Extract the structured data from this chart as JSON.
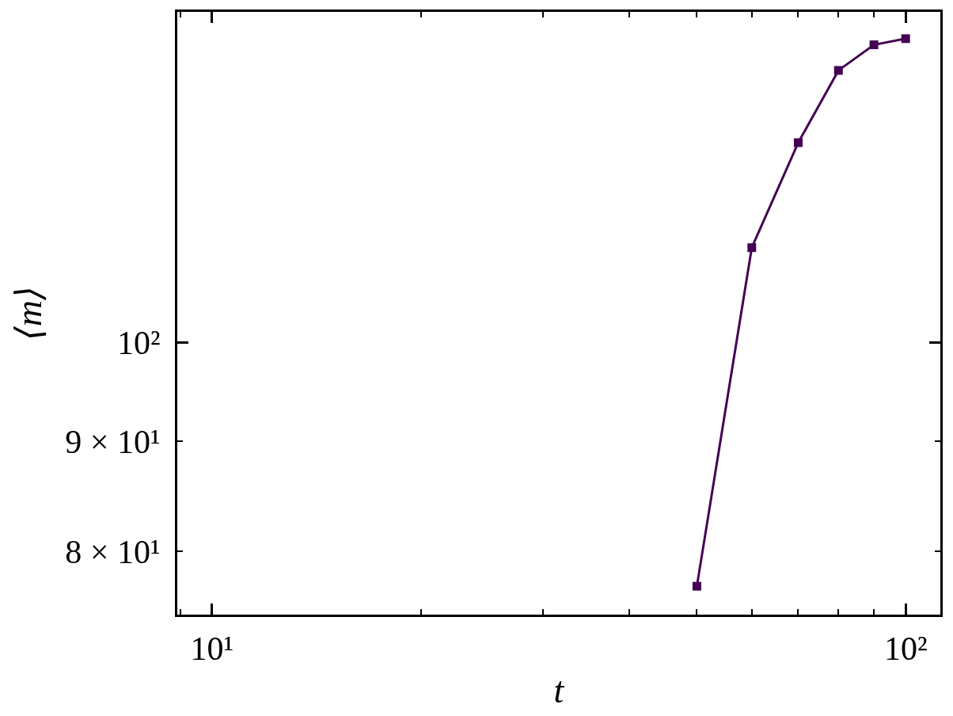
{
  "chart_data": {
    "type": "line",
    "xlabel": "t",
    "ylabel": "⟨m⟩",
    "x": [
      50,
      60,
      70,
      80,
      90,
      100
    ],
    "series": [
      {
        "color": "#440154",
        "values": [
          77.1,
          110.6,
          123.7,
          133.6,
          137.3,
          138.2
        ]
      }
    ],
    "log": "xy",
    "xlim": [
      8.91,
      112.2
    ],
    "ylim": [
      74.8,
      142.2
    ],
    "xticks": [
      {
        "value": 9,
        "label": null
      },
      {
        "value": 10,
        "label": "10¹"
      },
      {
        "value": 20,
        "label": null
      },
      {
        "value": 30,
        "label": null
      },
      {
        "value": 40,
        "label": null
      },
      {
        "value": 50,
        "label": null
      },
      {
        "value": 60,
        "label": null
      },
      {
        "value": 70,
        "label": null
      },
      {
        "value": 80,
        "label": null
      },
      {
        "value": 90,
        "label": null
      },
      {
        "value": 100,
        "label": "10²"
      }
    ],
    "yticks": [
      {
        "value": 80,
        "label": "8 × 10¹"
      },
      {
        "value": 90,
        "label": "9 × 10¹"
      },
      {
        "value": 100,
        "label": "10²"
      }
    ],
    "marker": "square",
    "line_style": "solid"
  }
}
